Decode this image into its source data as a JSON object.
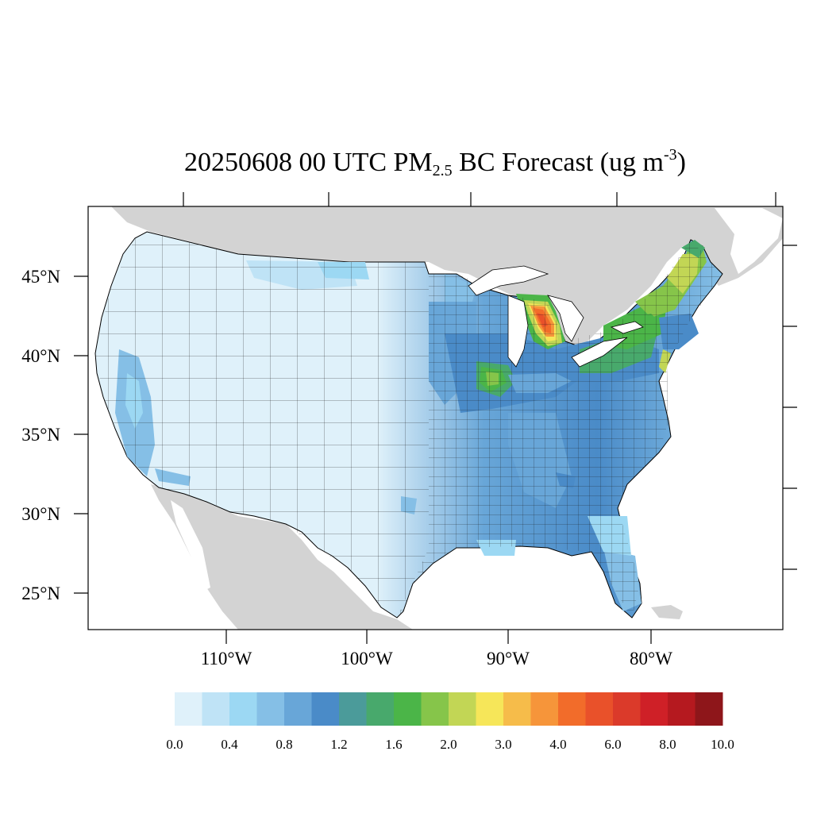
{
  "title": {
    "prefix": "20250608 00 UTC PM",
    "sub": "2.5",
    "middle": " BC Forecast (ug m",
    "sup": "-3",
    "suffix": ")"
  },
  "axes": {
    "lat_labels": [
      "45°N",
      "40°N",
      "35°N",
      "30°N",
      "25°N"
    ],
    "lon_labels": [
      "110°W",
      "100°W",
      "90°W",
      "80°W"
    ]
  },
  "colorbar": {
    "colors": [
      "#dff1fa",
      "#bfe3f6",
      "#9cd8f3",
      "#85bfe6",
      "#68a6d8",
      "#4a8bc8",
      "#4b9b9a",
      "#48a96c",
      "#4bb548",
      "#86c54a",
      "#c2d655",
      "#f6e659",
      "#f6bc4a",
      "#f6953a",
      "#f26c2a",
      "#e9512a",
      "#db3a2a",
      "#cf2027",
      "#b5191f",
      "#8e161a"
    ],
    "tick_labels": [
      "0.0",
      "0.4",
      "0.8",
      "1.2",
      "1.6",
      "2.0",
      "3.0",
      "4.0",
      "6.0",
      "8.0",
      "10.0"
    ]
  },
  "legend_colors": {
    "ocean": "#ffffff",
    "other_land": "#d3d3d3",
    "state_border": "#000000"
  }
}
